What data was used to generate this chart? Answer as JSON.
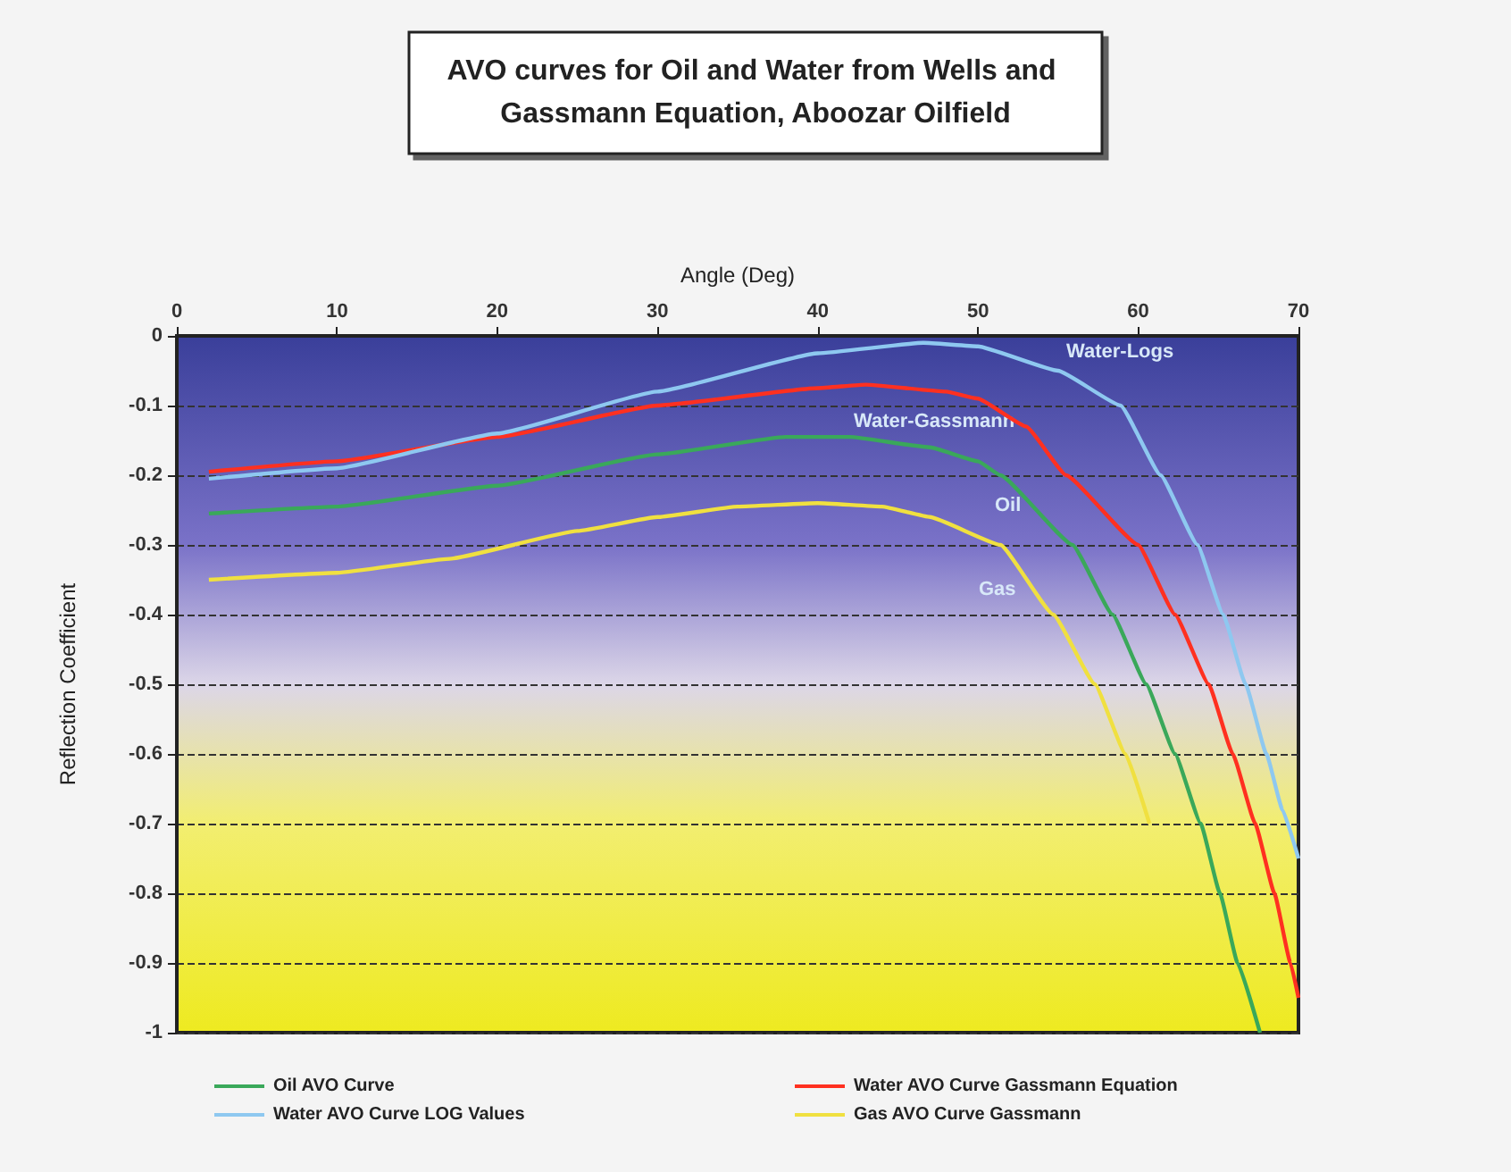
{
  "chart_data": {
    "type": "line",
    "title": "AVO curves for Oil and Water from Wells and Gassmann Equation, Aboozar Oilfield",
    "xlabel": "Angle (Deg)",
    "ylabel": "Reflection Coefficient",
    "xlim": [
      0,
      70
    ],
    "xticks": [
      0,
      10,
      20,
      30,
      40,
      50,
      60,
      70
    ],
    "ylim": [
      -1,
      0
    ],
    "yticks": [
      -1,
      -0.9,
      -0.8,
      -0.7,
      -0.6,
      -0.5,
      -0.4,
      -0.3,
      -0.2,
      -0.1,
      0
    ],
    "grid": "y",
    "legend": "bottom",
    "marker": "none",
    "line_style": "solid",
    "series": [
      {
        "name": "Oil AVO Curve",
        "color": "#3aa85a",
        "x": [
          2,
          10,
          20,
          30,
          38,
          42,
          47,
          50,
          51.4,
          55.9,
          58.4,
          60.5,
          62.3,
          63.9,
          65.1,
          66.2,
          67.6
        ],
        "values": [
          -0.255,
          -0.245,
          -0.215,
          -0.17,
          -0.145,
          -0.145,
          -0.16,
          -0.18,
          -0.2,
          -0.3,
          -0.4,
          -0.5,
          -0.6,
          -0.7,
          -0.8,
          -0.9,
          -1
        ]
      },
      {
        "name": "Water AVO Curve Gassmann Equation",
        "color": "#ff3020",
        "x": [
          2,
          10,
          20,
          30,
          40,
          43,
          48,
          50,
          53,
          55.5,
          60,
          62.3,
          64.4,
          65.9,
          67.3,
          68.5,
          69.5,
          70
        ],
        "values": [
          -0.195,
          -0.18,
          -0.145,
          -0.1,
          -0.075,
          -0.07,
          -0.08,
          -0.09,
          -0.13,
          -0.2,
          -0.3,
          -0.4,
          -0.5,
          -0.6,
          -0.7,
          -0.8,
          -0.9,
          -0.95
        ]
      },
      {
        "name": "Water AVO Curve LOG Values",
        "color": "#8ec8f0",
        "x": [
          2,
          10,
          20,
          30,
          40,
          46.6,
          50,
          55,
          58.9,
          61.4,
          63.7,
          65.3,
          66.7,
          68,
          69,
          70
        ],
        "values": [
          -0.205,
          -0.19,
          -0.14,
          -0.08,
          -0.025,
          -0.01,
          -0.015,
          -0.05,
          -0.1,
          -0.2,
          -0.3,
          -0.4,
          -0.5,
          -0.6,
          -0.68,
          -0.75
        ]
      },
      {
        "name": "Gas AVO Curve Gassmann",
        "color": "#f0e040",
        "x": [
          2,
          10,
          17,
          25,
          30,
          35,
          40,
          44,
          47,
          51.4,
          54.7,
          57.3,
          59.2,
          60.7
        ],
        "values": [
          -0.35,
          -0.34,
          -0.32,
          -0.28,
          -0.26,
          -0.245,
          -0.24,
          -0.245,
          -0.26,
          -0.3,
          -0.4,
          -0.5,
          -0.6,
          -0.7
        ]
      }
    ],
    "annotations": [
      "Water-Logs",
      "Water-Gassmann",
      "Oil",
      "Gas"
    ]
  }
}
